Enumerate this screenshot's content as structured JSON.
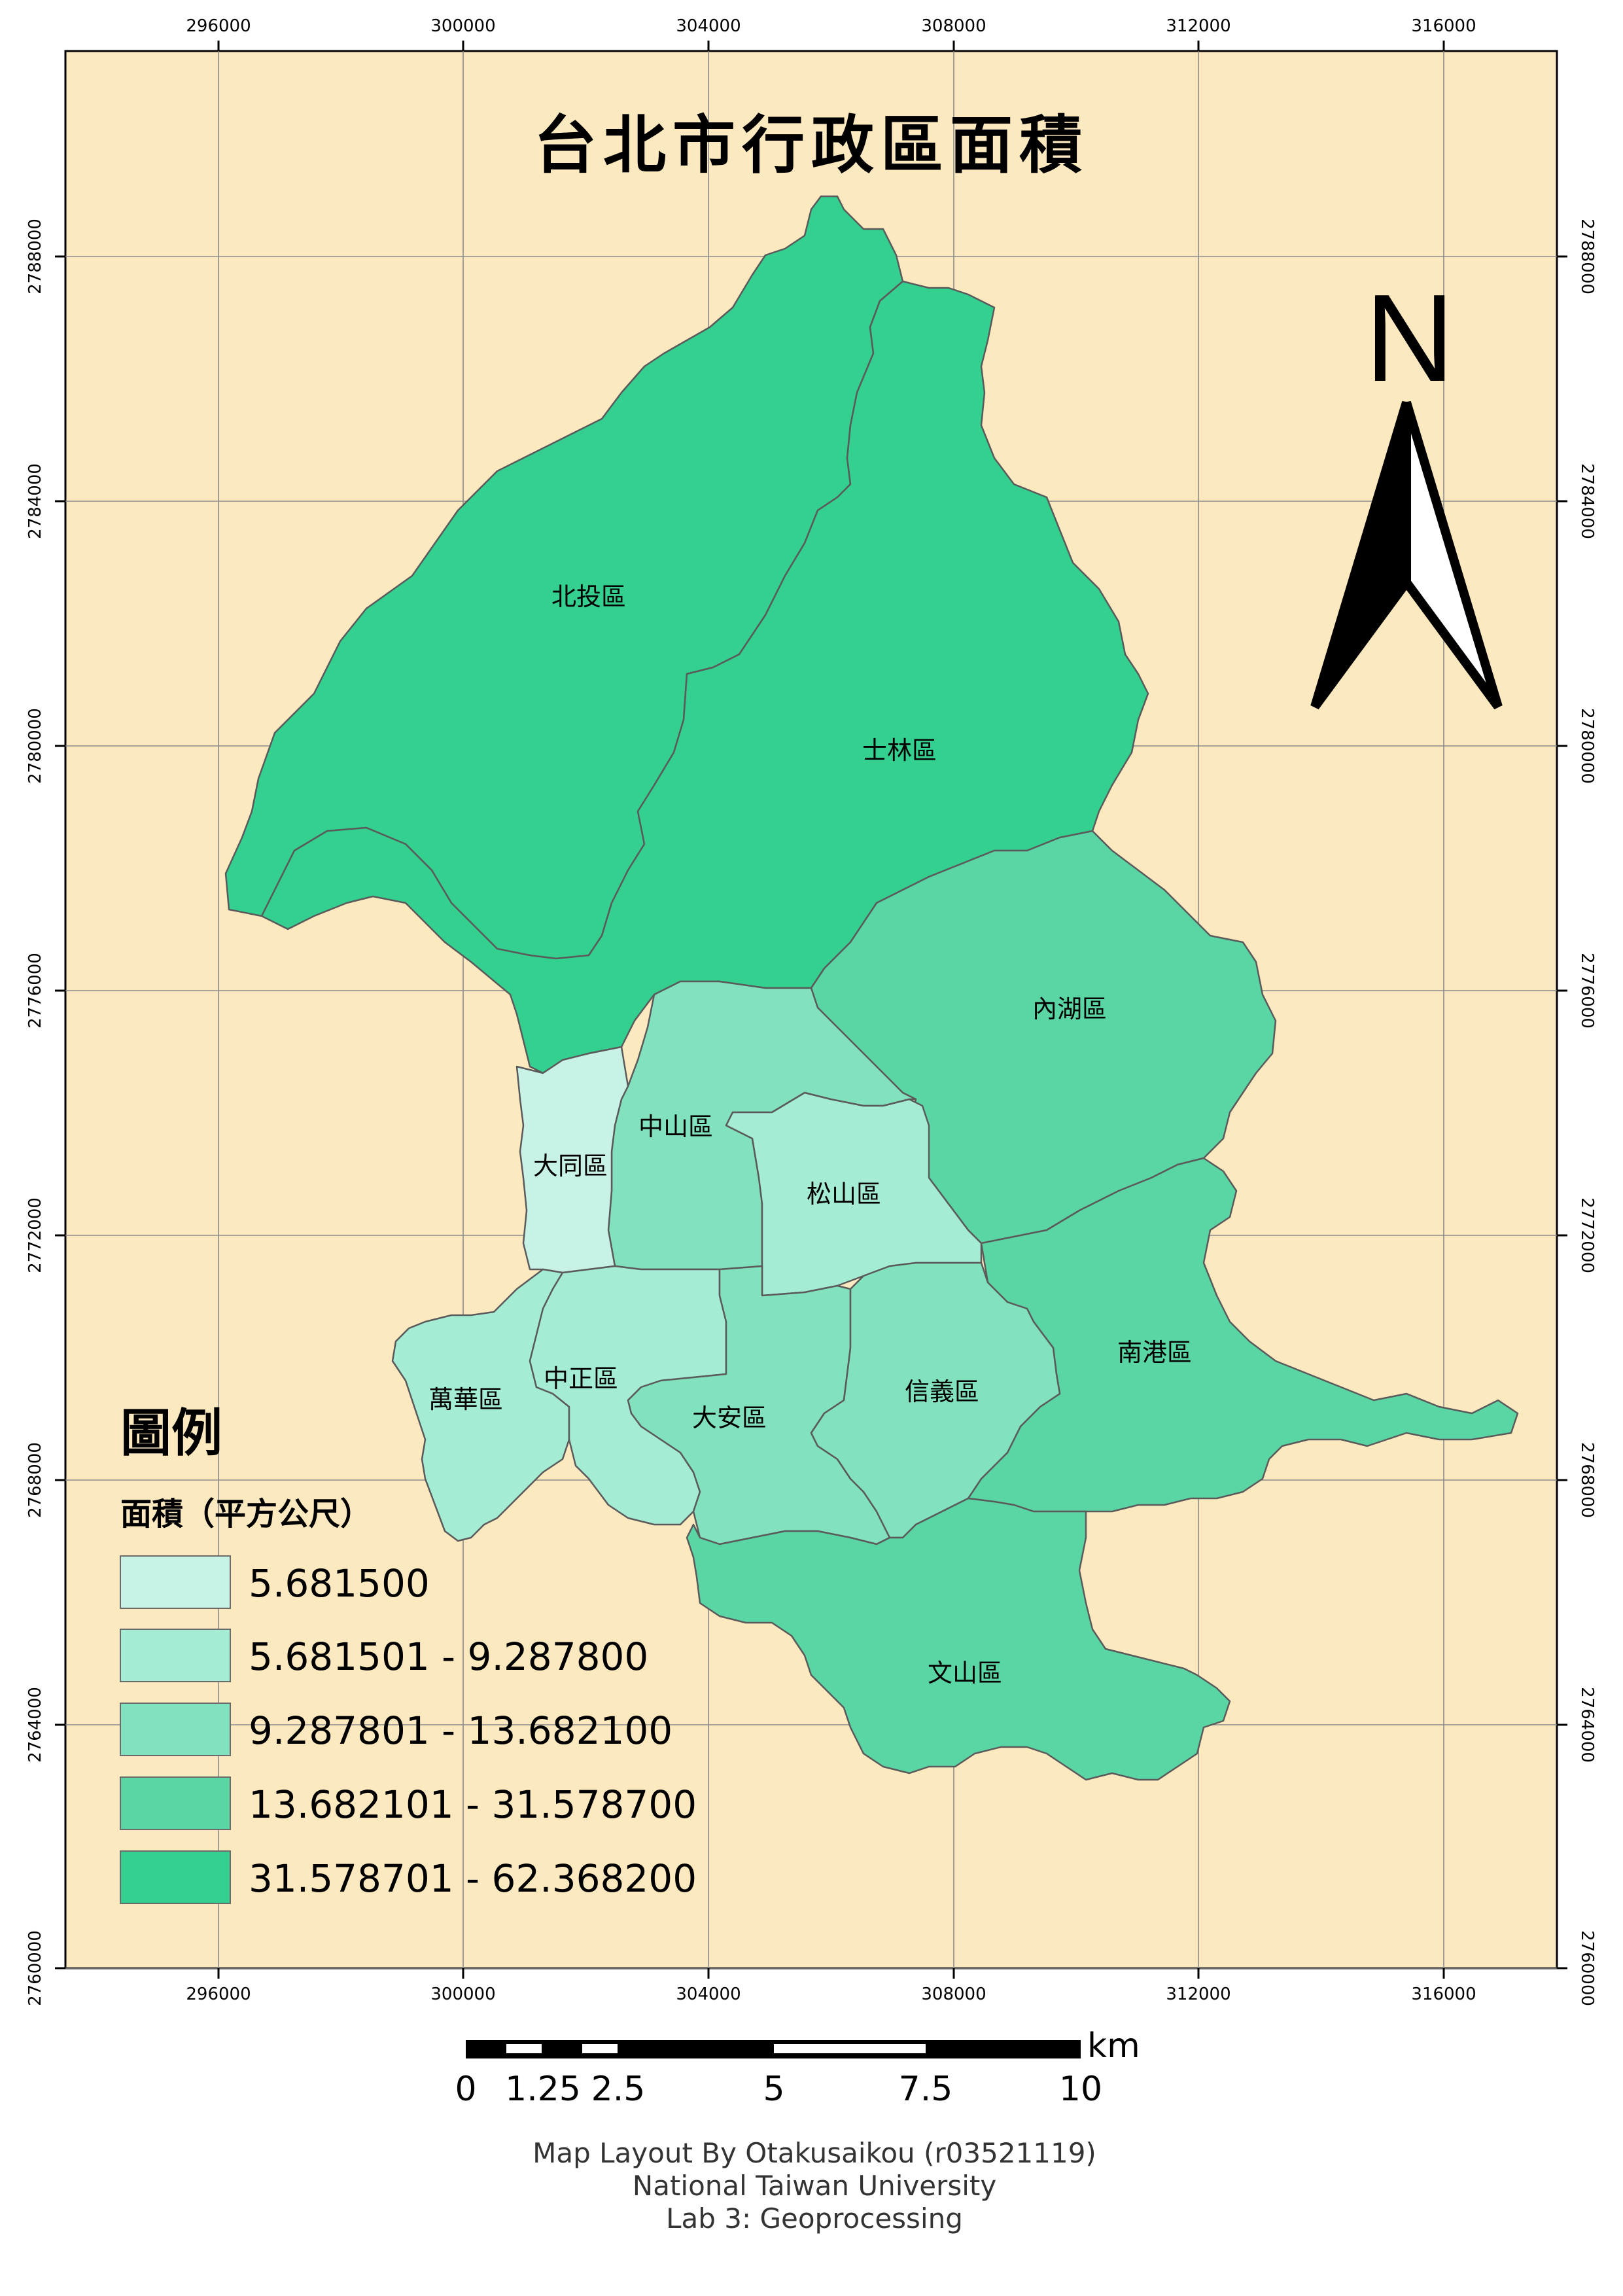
{
  "title": "台北市行政區面積",
  "north_arrow": {
    "letter": "N"
  },
  "colors": {
    "background": "#fde9c0",
    "class1": "#c9f2e6",
    "class2": "#a5ecd5",
    "class3": "#82e2be",
    "class4": "#5ad6a5",
    "class5": "#33d090"
  },
  "grid": {
    "x_ticks": [
      "296000",
      "300000",
      "304000",
      "308000",
      "312000",
      "316000"
    ],
    "y_ticks": [
      "2788000",
      "2784000",
      "2780000",
      "2776000",
      "2772000",
      "2768000",
      "2764000",
      "2760000"
    ]
  },
  "districts": [
    {
      "name": "北投區",
      "class": 5
    },
    {
      "name": "士林區",
      "class": 5
    },
    {
      "name": "內湖區",
      "class": 4
    },
    {
      "name": "中山區",
      "class": 3
    },
    {
      "name": "大同區",
      "class": 1
    },
    {
      "name": "松山區",
      "class": 2
    },
    {
      "name": "南港區",
      "class": 4
    },
    {
      "name": "萬華區",
      "class": 2
    },
    {
      "name": "中正區",
      "class": 2
    },
    {
      "name": "大安區",
      "class": 3
    },
    {
      "name": "信義區",
      "class": 3
    },
    {
      "name": "文山區",
      "class": 4
    }
  ],
  "legend": {
    "heading": "圖例",
    "subheading": "面積（平方公尺）",
    "items": [
      {
        "label": "5.681500",
        "class": 1
      },
      {
        "label": "5.681501 - 9.287800",
        "class": 2
      },
      {
        "label": "9.287801 - 13.682100",
        "class": 3
      },
      {
        "label": "13.682101 - 31.578700",
        "class": 4
      },
      {
        "label": "31.578701 - 62.368200",
        "class": 5
      }
    ]
  },
  "scale_bar": {
    "unit": "km",
    "labels": [
      "0",
      "1.25",
      "2.5",
      "5",
      "7.5",
      "10"
    ]
  },
  "credits": [
    "Map Layout By Otakusaikou (r03521119)",
    "National Taiwan University",
    "Lab 3: Geoprocessing"
  ]
}
